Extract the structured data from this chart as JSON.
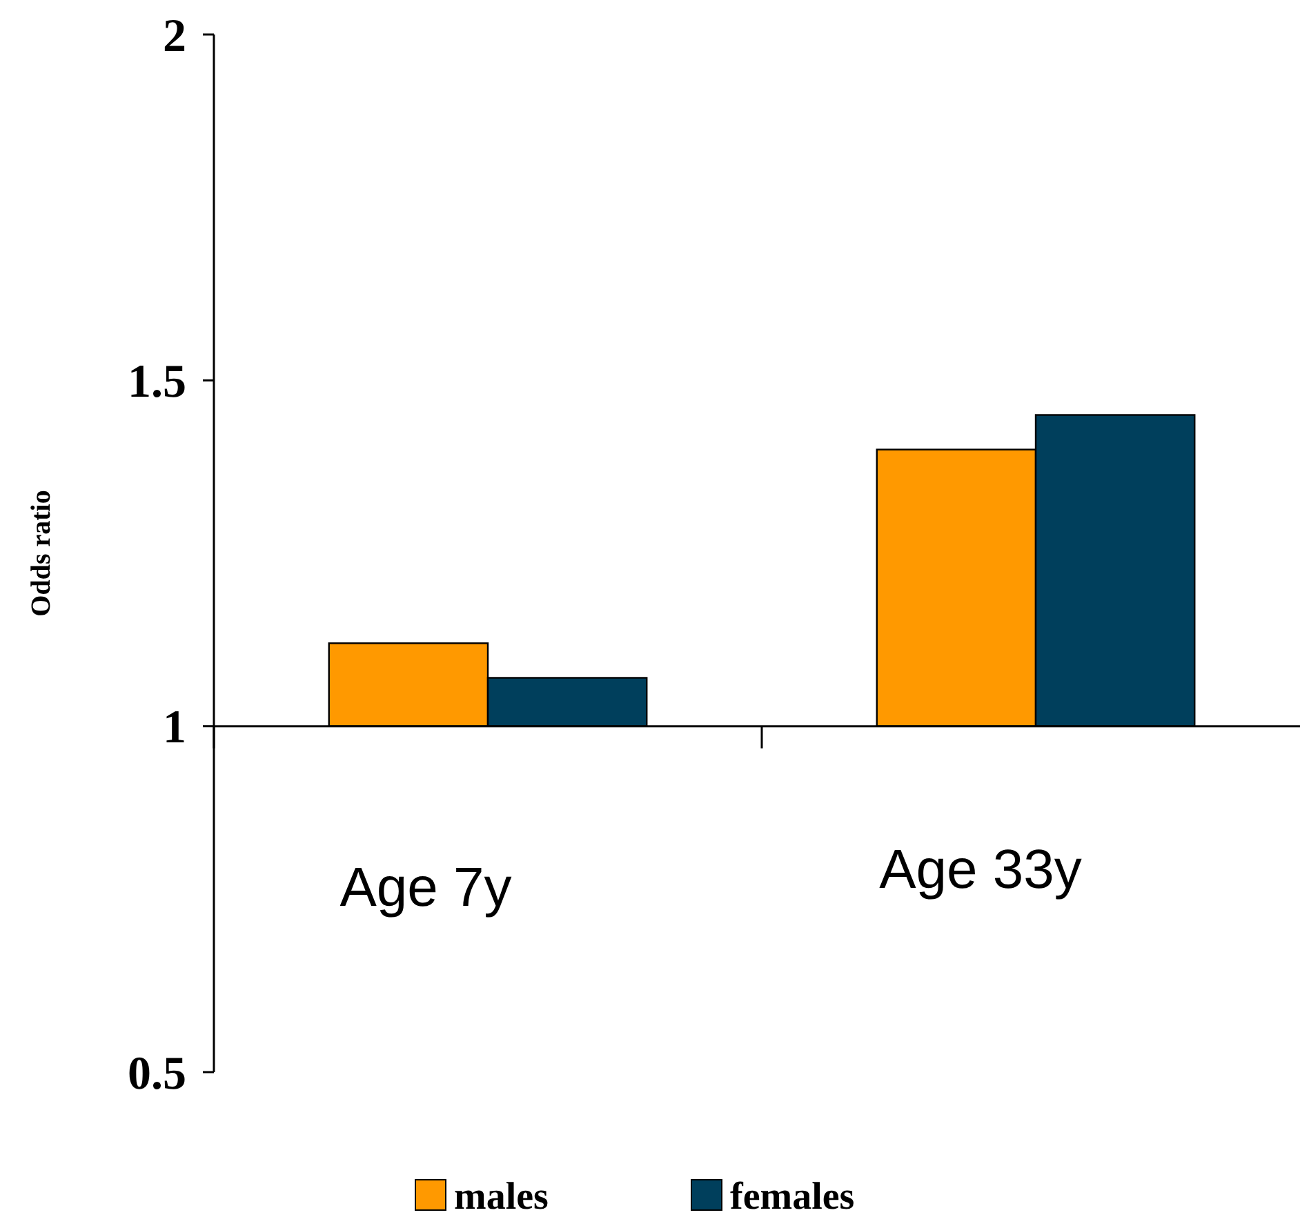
{
  "chart_data": {
    "type": "bar",
    "ylabel": "Odds ratio",
    "categories": [
      "Age 7y",
      "Age 33y"
    ],
    "series": [
      {
        "name": "males",
        "color": "#ff9900",
        "values": [
          0.12,
          0.4
        ],
        "base": [
          1,
          1
        ]
      },
      {
        "name": "females",
        "color": "#003f5c",
        "values": [
          0.07,
          0.45
        ],
        "base": [
          1,
          1
        ]
      }
    ],
    "ylim": [
      0.5,
      2
    ],
    "yticks": [
      0.5,
      1,
      1.5,
      2
    ],
    "legend": "bottom"
  }
}
